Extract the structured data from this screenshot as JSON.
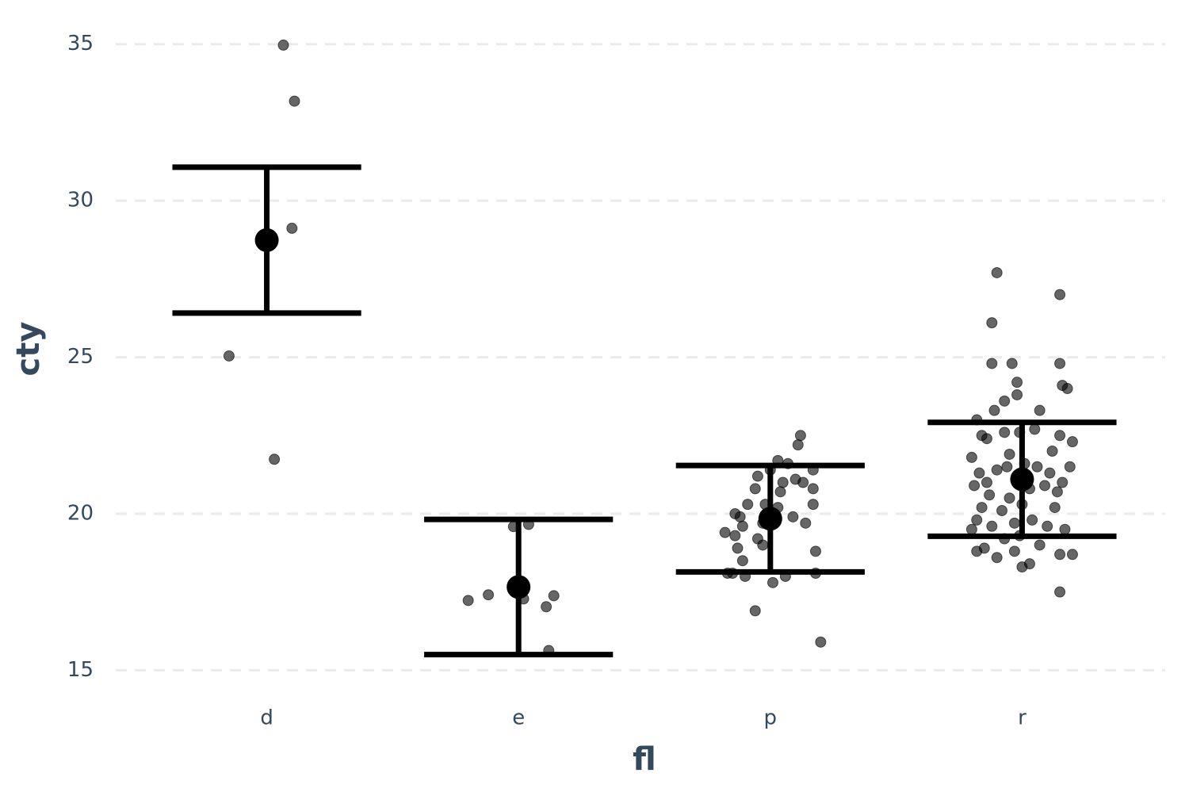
{
  "chart_data": {
    "type": "scatter",
    "xlabel": "fl",
    "ylabel": "cty",
    "categories": [
      "d",
      "e",
      "p",
      "r"
    ],
    "color": "#000000",
    "points": {
      "x": [
        1.066,
        1.11,
        1.1,
        0.85,
        1.03,
        1.98,
        2.04,
        1.8,
        1.88,
        2.02,
        2.11,
        2.14,
        2.12,
        3.12,
        3.11,
        3.03,
        3.07,
        3.17,
        3.1,
        3.05,
        2.95,
        3.13,
        3.04,
        2.94,
        3.17,
        2.98,
        3.17,
        2.86,
        3.09,
        3.14,
        2.89,
        2.97,
        2.82,
        2.86,
        2.95,
        2.97,
        2.87,
        2.89,
        3.18,
        2.83,
        2.85,
        2.9,
        3.06,
        3.18,
        3.01,
        2.94,
        3.2,
        3.03,
        2.91,
        3.0,
        2.88,
        3.9,
        4.15,
        3.88,
        3.88,
        3.96,
        4.15,
        4.16,
        4.18,
        3.98,
        3.98,
        3.93,
        3.89,
        4.07,
        3.82,
        3.84,
        3.93,
        3.99,
        4.15,
        4.2,
        4.05,
        3.8,
        3.83,
        3.86,
        3.9,
        3.94,
        4.01,
        4.06,
        4.11,
        4.16,
        4.19,
        3.81,
        3.87,
        3.95,
        4.03,
        4.09,
        4.14,
        3.84,
        3.92,
        4.0,
        4.13,
        3.82,
        3.88,
        3.97,
        4.04,
        4.1,
        4.17,
        3.8,
        3.85,
        3.93,
        3.99,
        4.07,
        3.82,
        3.9,
        3.97,
        4.03,
        4.0,
        4.15,
        4.2,
        4.15,
        3.95,
        4.12,
        3.86
      ],
      "y": [
        34.97,
        33.18,
        29.12,
        25.04,
        21.74,
        19.59,
        19.66,
        17.23,
        17.41,
        17.28,
        17.03,
        17.38,
        15.63,
        22.5,
        22.2,
        21.7,
        21.6,
        21.4,
        21.1,
        21.0,
        21.2,
        21.0,
        20.7,
        20.8,
        20.8,
        20.3,
        20.3,
        20.0,
        19.9,
        19.7,
        19.6,
        19.7,
        19.4,
        19.3,
        19.2,
        19.0,
        18.9,
        18.5,
        18.8,
        18.1,
        18.1,
        18.0,
        18.0,
        18.1,
        17.8,
        16.9,
        15.9,
        20.2,
        20.3,
        21.4,
        19.9,
        27.7,
        27.0,
        26.1,
        24.8,
        24.8,
        24.8,
        24.1,
        24.0,
        24.2,
        23.8,
        23.6,
        23.3,
        23.3,
        23.0,
        22.5,
        22.6,
        22.6,
        22.5,
        22.3,
        22.7,
        21.8,
        21.3,
        21.0,
        21.4,
        21.5,
        21.6,
        21.5,
        21.3,
        21.0,
        21.5,
        20.9,
        20.6,
        20.5,
        20.8,
        20.9,
        20.7,
        20.2,
        20.1,
        20.3,
        20.2,
        19.8,
        19.6,
        19.7,
        19.8,
        19.6,
        19.5,
        19.5,
        18.9,
        19.2,
        19.3,
        19.0,
        18.8,
        18.6,
        18.8,
        18.4,
        18.3,
        18.7,
        18.7,
        17.5,
        21.9,
        22.0,
        22.4
      ]
    },
    "summary": {
      "values": [
        28.74,
        17.66,
        19.84,
        21.1
      ],
      "errors": [
        2.33,
        2.16,
        1.7,
        1.82
      ]
    },
    "ylim": [
      14.25,
      35.5
    ],
    "yticks": [
      15,
      20,
      25,
      30,
      35
    ],
    "grid": true
  }
}
